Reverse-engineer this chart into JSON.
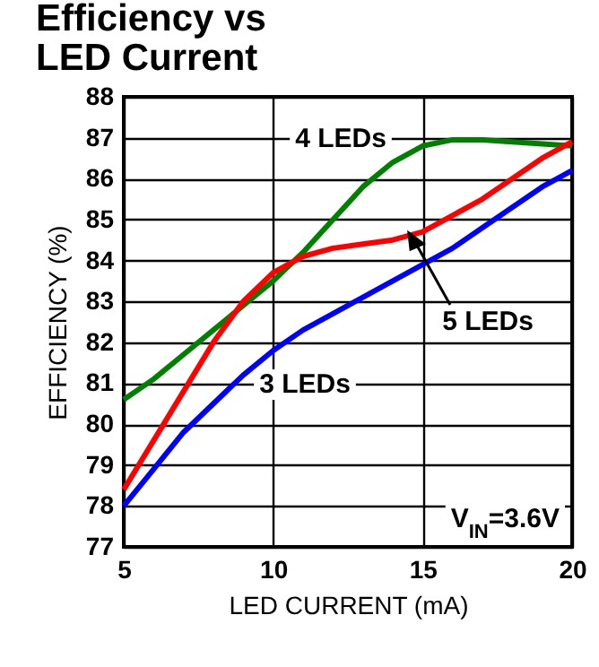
{
  "chart_data": {
    "type": "line",
    "title": "Efficiency vs\nLED Current",
    "xlabel": "LED CURRENT (mA)",
    "ylabel": "EFFICIENCY (%)",
    "x": [
      5,
      6,
      7,
      8,
      9,
      10,
      11,
      12,
      13,
      14,
      15,
      16,
      17,
      18,
      19,
      20
    ],
    "series": [
      {
        "color": "#008000",
        "values": [
          80.6,
          81.1,
          81.7,
          82.3,
          82.9,
          83.5,
          84.2,
          85.0,
          85.8,
          86.4,
          86.8,
          86.95,
          86.95,
          86.9,
          86.85,
          86.8
        ]
      },
      {
        "color": "#ff0000",
        "values": [
          78.4,
          79.6,
          80.8,
          82.0,
          83.0,
          83.7,
          84.1,
          84.3,
          84.4,
          84.5,
          84.7,
          85.1,
          85.5,
          86.0,
          86.5,
          86.9
        ]
      },
      {
        "color": "#0000ff",
        "values": [
          78.0,
          78.9,
          79.8,
          80.5,
          81.2,
          81.8,
          82.3,
          82.7,
          83.1,
          83.5,
          83.9,
          84.3,
          84.8,
          85.3,
          85.8,
          86.2
        ]
      }
    ],
    "annotations": [
      "4 LEDs",
      "5 LEDs",
      "3 LEDs",
      "V$_{IN}$=3.6V"
    ],
    "xlim": [
      5,
      20
    ],
    "xticks": [
      5,
      10,
      15,
      20
    ],
    "ylim": [
      77,
      88
    ],
    "yticks": [
      77,
      78,
      79,
      80,
      81,
      82,
      83,
      84,
      85,
      86,
      87,
      88
    ],
    "grid": true,
    "marker": "none",
    "line_style": "solid"
  }
}
